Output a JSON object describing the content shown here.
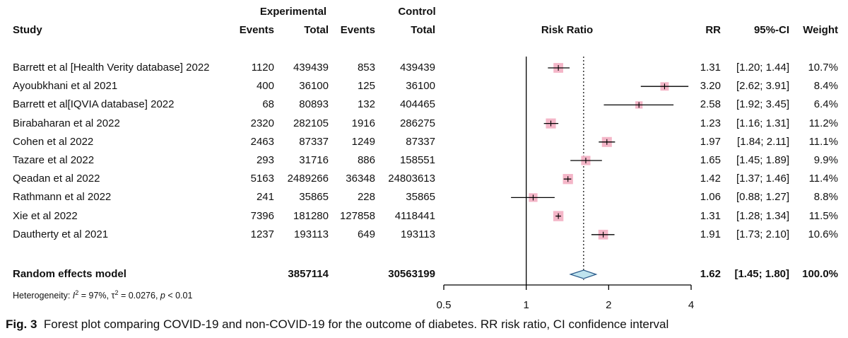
{
  "header": {
    "group_experimental": "Experimental",
    "group_control": "Control",
    "col_study": "Study",
    "col_events": "Events",
    "col_total": "Total",
    "col_events2": "Events",
    "col_total2": "Total",
    "col_plot": "Risk Ratio",
    "col_rr": "RR",
    "col_ci": "95%-CI",
    "col_weight": "Weight"
  },
  "studies": [
    {
      "name": "Barrett et al [Health Verity database] 2022",
      "exp_events": "1120",
      "exp_total": "439439",
      "ctl_events": "853",
      "ctl_total": "439439",
      "rr": "1.31",
      "ci": "[1.20; 1.44]",
      "weight": "10.7%"
    },
    {
      "name": "Ayoubkhani et al  2021",
      "exp_events": "400",
      "exp_total": "36100",
      "ctl_events": "125",
      "ctl_total": "36100",
      "rr": "3.20",
      "ci": "[2.62; 3.91]",
      "weight": "8.4%"
    },
    {
      "name": "Barrett et al[IQVIA database] 2022",
      "exp_events": "68",
      "exp_total": "80893",
      "ctl_events": "132",
      "ctl_total": "404465",
      "rr": "2.58",
      "ci": "[1.92; 3.45]",
      "weight": "6.4%"
    },
    {
      "name": "Birabaharan et al 2022",
      "exp_events": "2320",
      "exp_total": "282105",
      "ctl_events": "1916",
      "ctl_total": "286275",
      "rr": "1.23",
      "ci": "[1.16; 1.31]",
      "weight": "11.2%"
    },
    {
      "name": "Cohen et al 2022",
      "exp_events": "2463",
      "exp_total": "87337",
      "ctl_events": "1249",
      "ctl_total": "87337",
      "rr": "1.97",
      "ci": "[1.84; 2.11]",
      "weight": "11.1%"
    },
    {
      "name": "Tazare et al 2022",
      "exp_events": "293",
      "exp_total": "31716",
      "ctl_events": "886",
      "ctl_total": "158551",
      "rr": "1.65",
      "ci": "[1.45; 1.89]",
      "weight": "9.9%"
    },
    {
      "name": "Qeadan et al 2022",
      "exp_events": "5163",
      "exp_total": "2489266",
      "ctl_events": "36348",
      "ctl_total": "24803613",
      "rr": "1.42",
      "ci": "[1.37; 1.46]",
      "weight": "11.4%"
    },
    {
      "name": "Rathmann et al 2022",
      "exp_events": "241",
      "exp_total": "35865",
      "ctl_events": "228",
      "ctl_total": "35865",
      "rr": "1.06",
      "ci": "[0.88; 1.27]",
      "weight": "8.8%"
    },
    {
      "name": "Xie et al 2022",
      "exp_events": "7396",
      "exp_total": "181280",
      "ctl_events": "127858",
      "ctl_total": "4118441",
      "rr": "1.31",
      "ci": "[1.28; 1.34]",
      "weight": "11.5%"
    },
    {
      "name": "Dautherty et al 2021",
      "exp_events": "1237",
      "exp_total": "193113",
      "ctl_events": "649",
      "ctl_total": "193113",
      "rr": "1.91",
      "ci": "[1.73; 2.10]",
      "weight": "10.6%"
    }
  ],
  "summary": {
    "label": "Random effects model",
    "exp_total": "3857114",
    "ctl_total": "30563199",
    "rr": "1.62",
    "ci": "[1.45; 1.80]",
    "weight": "100.0%"
  },
  "heterogeneity": {
    "prefix": "Heterogeneity: ",
    "i2_symbol": "I",
    "i2_sup": "2",
    "i2_value": " = 97%, ",
    "tau_symbol": "τ",
    "tau_sup": "2",
    "tau_value": " = 0.0276, ",
    "p_symbol": "p",
    "p_value": " < 0.01"
  },
  "caption": {
    "label": "Fig. 3",
    "text": "Forest plot comparing COVID-19 and non-COVID-19 for the outcome of diabetes. RR risk ratio, CI confidence interval"
  },
  "colors": {
    "square": "#f4b6c8",
    "diamond_fill": "#bfe3ee",
    "diamond_stroke": "#2a5a8a",
    "line": "#000000"
  },
  "chart_data": {
    "type": "scatter",
    "scale": "log",
    "xlim": [
      0.5,
      4
    ],
    "x_ticks": [
      "0.5",
      "1",
      "2",
      "4"
    ],
    "x_tick_values": [
      0.5,
      1,
      2,
      4
    ],
    "null_line": 1,
    "pooled_line": 1.62,
    "series": [
      {
        "values": [
          {
            "rr": 1.31,
            "lo": 1.2,
            "hi": 1.44,
            "weight": 10.7
          },
          {
            "rr": 3.2,
            "lo": 2.62,
            "hi": 3.91,
            "weight": 8.4
          },
          {
            "rr": 2.58,
            "lo": 1.92,
            "hi": 3.45,
            "weight": 6.4
          },
          {
            "rr": 1.23,
            "lo": 1.16,
            "hi": 1.31,
            "weight": 11.2
          },
          {
            "rr": 1.97,
            "lo": 1.84,
            "hi": 2.11,
            "weight": 11.1
          },
          {
            "rr": 1.65,
            "lo": 1.45,
            "hi": 1.89,
            "weight": 9.9
          },
          {
            "rr": 1.42,
            "lo": 1.37,
            "hi": 1.46,
            "weight": 11.4
          },
          {
            "rr": 1.06,
            "lo": 0.88,
            "hi": 1.27,
            "weight": 8.8
          },
          {
            "rr": 1.31,
            "lo": 1.28,
            "hi": 1.34,
            "weight": 11.5
          },
          {
            "rr": 1.91,
            "lo": 1.73,
            "hi": 2.1,
            "weight": 10.6
          }
        ]
      }
    ],
    "pooled": {
      "rr": 1.62,
      "lo": 1.45,
      "hi": 1.8
    }
  }
}
